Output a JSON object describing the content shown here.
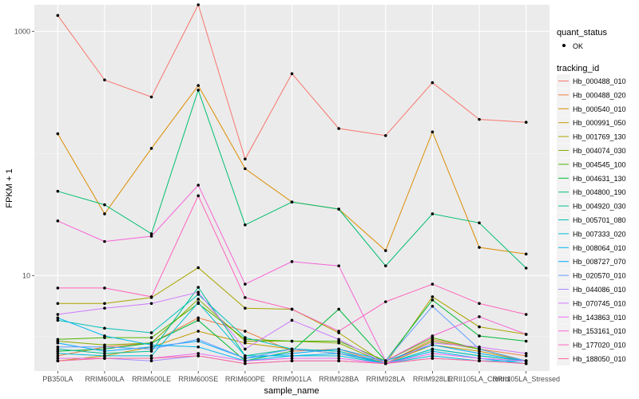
{
  "chart_data": {
    "type": "line",
    "xlabel": "sample_name",
    "ylabel": "FPKM + 1",
    "y_scale": "log10",
    "ylim": [
      1.65,
      1650
    ],
    "y_ticks": [
      {
        "value": 10,
        "label": "10"
      },
      {
        "value": 1000,
        "label": "1000"
      }
    ],
    "categories": [
      "PB350LA",
      "RRIM600LA",
      "RRIM600LE",
      "RRIM600SE",
      "RRIM600PE",
      "RRIM901LA",
      "RRIM928BA",
      "RRIM928LA",
      "RRIM928LE",
      "RRII105LA_Control",
      "RRII105LA_Stressed"
    ],
    "point_legend": {
      "title": "quant_status",
      "label": "OK"
    },
    "legend_title": "tracking_id",
    "series": [
      {
        "name": "Hb_000488_010",
        "color": "#F8766D",
        "values": [
          1350,
          400,
          290,
          1650,
          90,
          450,
          160,
          140,
          380,
          190,
          180
        ]
      },
      {
        "name": "Hb_000488_020",
        "color": "#EE8043",
        "values": [
          2.2,
          2.6,
          2.8,
          4.5,
          3.5,
          2.4,
          2.5,
          1.9,
          3.0,
          2.5,
          2.2
        ]
      },
      {
        "name": "Hb_000540_010",
        "color": "#DC8D00",
        "values": [
          145,
          32,
          110,
          360,
          75,
          40,
          35,
          16,
          150,
          17,
          15
        ]
      },
      {
        "name": "Hb_000991_050",
        "color": "#C59900",
        "values": [
          2.0,
          2.2,
          2.6,
          3.5,
          2.8,
          2.5,
          2.3,
          1.9,
          2.7,
          2.4,
          2.0
        ]
      },
      {
        "name": "Hb_001769_130",
        "color": "#A9A400",
        "values": [
          5.9,
          5.9,
          6.6,
          11.6,
          5.4,
          5.3,
          3.4,
          1.9,
          6.7,
          3.8,
          3.3
        ]
      },
      {
        "name": "Hb_004074_030",
        "color": "#86AC00",
        "values": [
          2.9,
          2.7,
          2.8,
          6.4,
          2.9,
          2.9,
          2.8,
          1.9,
          2.9,
          2.5,
          2.0
        ]
      },
      {
        "name": "Hb_004545_100",
        "color": "#4EB400",
        "values": [
          3.0,
          3.1,
          3.1,
          5.9,
          3.0,
          2.9,
          2.9,
          2.0,
          3.1,
          2.5,
          2.0
        ]
      },
      {
        "name": "Hb_004631_130",
        "color": "#00BA38",
        "values": [
          2.4,
          2.5,
          2.8,
          4.3,
          2.0,
          2.4,
          5.3,
          2.0,
          6.3,
          3.2,
          2.9
        ]
      },
      {
        "name": "Hb_004800_190",
        "color": "#00BE70",
        "values": [
          49,
          38,
          22,
          330,
          26,
          40,
          35,
          12,
          32,
          27,
          11.5
        ]
      },
      {
        "name": "Hb_004920_030",
        "color": "#00C097",
        "values": [
          2.5,
          2.3,
          2.4,
          8.0,
          2.2,
          2.5,
          2.4,
          1.9,
          2.5,
          2.2,
          2.0
        ]
      },
      {
        "name": "Hb_005701_080",
        "color": "#00C1B9",
        "values": [
          4.3,
          3.7,
          3.4,
          7.0,
          3.1,
          2.5,
          2.4,
          1.9,
          2.5,
          2.2,
          2.0
        ]
      },
      {
        "name": "Hb_007333_020",
        "color": "#00BED8",
        "values": [
          2.3,
          2.2,
          2.2,
          6.0,
          2.2,
          2.2,
          2.2,
          1.9,
          2.2,
          2.0,
          2.0
        ]
      },
      {
        "name": "Hb_008064_010",
        "color": "#00B8F1",
        "values": [
          4.5,
          3.2,
          2.7,
          2.6,
          2.0,
          2.2,
          2.3,
          1.9,
          2.4,
          2.1,
          1.9
        ]
      },
      {
        "name": "Hb_008727_070",
        "color": "#00ACFC",
        "values": [
          2.8,
          2.4,
          2.6,
          2.9,
          2.1,
          2.3,
          2.5,
          2.0,
          2.7,
          2.3,
          2.0
        ]
      },
      {
        "name": "Hb_020570_010",
        "color": "#619CFF",
        "values": [
          2.6,
          2.6,
          2.5,
          3.0,
          2.1,
          2.5,
          2.3,
          2.0,
          5.6,
          2.5,
          2.0
        ]
      },
      {
        "name": "Hb_044086_010",
        "color": "#A58AFF",
        "values": [
          2.0,
          2.1,
          2.0,
          2.2,
          1.9,
          2.0,
          2.0,
          1.9,
          2.1,
          2.0,
          1.9
        ]
      },
      {
        "name": "Hb_070745_010",
        "color": "#CF78FF",
        "values": [
          4.8,
          5.4,
          5.9,
          7.3,
          2.5,
          4.3,
          3.0,
          1.9,
          2.8,
          2.6,
          2.3
        ]
      },
      {
        "name": "Hb_143863_010",
        "color": "#EA6AF1",
        "values": [
          2.1,
          2.1,
          2.1,
          2.3,
          2.0,
          2.1,
          2.1,
          1.9,
          2.3,
          2.1,
          2.0
        ]
      },
      {
        "name": "Hb_153161_010",
        "color": "#F763D6",
        "values": [
          28,
          19,
          21,
          55,
          8.5,
          13,
          12,
          2.0,
          3.2,
          4.6,
          3.3
        ]
      },
      {
        "name": "Hb_177020_010",
        "color": "#FF62BC",
        "values": [
          7.9,
          7.9,
          6.7,
          45,
          6.6,
          5.3,
          3.5,
          6.1,
          8.5,
          5.9,
          4.8
        ]
      },
      {
        "name": "Hb_188050_010",
        "color": "#FF6A98",
        "values": [
          2.0,
          2.1,
          2.1,
          2.2,
          1.9,
          2.0,
          2.0,
          1.9,
          2.1,
          2.0,
          1.9
        ]
      }
    ]
  }
}
